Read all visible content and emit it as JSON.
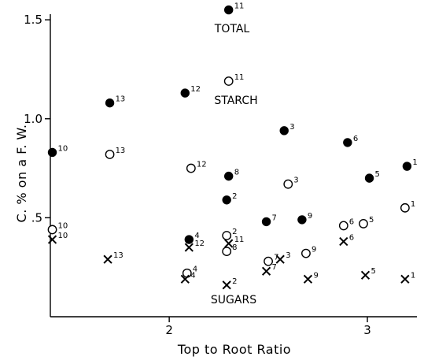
{
  "chart_data": {
    "type": "scatter",
    "title": "",
    "xlabel": "Top to Root Ratio",
    "ylabel": "C. % on a F. W.",
    "xlim": [
      1.4,
      3.25
    ],
    "ylim": [
      0.0,
      1.6
    ],
    "xticks": [
      2,
      3
    ],
    "xtick_labels": [
      "2",
      "3"
    ],
    "yticks": [
      0.5,
      1.0,
      1.5
    ],
    "ytick_labels": [
      ".5",
      "1.0",
      "1.5"
    ],
    "grid": false,
    "series": [
      {
        "name": "TOTAL",
        "marker": "filled-circle",
        "points": [
          {
            "x": 2.3,
            "y": 1.55,
            "label": "11"
          },
          {
            "x": 2.08,
            "y": 1.13,
            "label": "12"
          },
          {
            "x": 1.7,
            "y": 1.08,
            "label": "13"
          },
          {
            "x": 2.58,
            "y": 0.94,
            "label": "3"
          },
          {
            "x": 2.9,
            "y": 0.88,
            "label": "6"
          },
          {
            "x": 1.41,
            "y": 0.83,
            "label": "10"
          },
          {
            "x": 3.2,
            "y": 0.76,
            "label": "1"
          },
          {
            "x": 2.3,
            "y": 0.71,
            "label": "8"
          },
          {
            "x": 3.01,
            "y": 0.7,
            "label": "5"
          },
          {
            "x": 2.29,
            "y": 0.59,
            "label": "2"
          },
          {
            "x": 2.49,
            "y": 0.48,
            "label": "7"
          },
          {
            "x": 2.67,
            "y": 0.49,
            "label": "9"
          },
          {
            "x": 2.1,
            "y": 0.39,
            "label": "4"
          }
        ]
      },
      {
        "name": "STARCH",
        "marker": "open-circle",
        "points": [
          {
            "x": 2.3,
            "y": 1.19,
            "label": "11"
          },
          {
            "x": 1.7,
            "y": 0.82,
            "label": "13"
          },
          {
            "x": 2.11,
            "y": 0.75,
            "label": "12"
          },
          {
            "x": 2.6,
            "y": 0.67,
            "label": "3"
          },
          {
            "x": 3.19,
            "y": 0.55,
            "label": "1"
          },
          {
            "x": 2.88,
            "y": 0.46,
            "label": "6"
          },
          {
            "x": 2.98,
            "y": 0.47,
            "label": "5"
          },
          {
            "x": 1.41,
            "y": 0.44,
            "label": "10"
          },
          {
            "x": 2.29,
            "y": 0.41,
            "label": "2"
          },
          {
            "x": 2.29,
            "y": 0.33,
            "label": "8"
          },
          {
            "x": 2.69,
            "y": 0.32,
            "label": "9"
          },
          {
            "x": 2.5,
            "y": 0.28,
            "label": "7"
          },
          {
            "x": 2.09,
            "y": 0.22,
            "label": "4"
          }
        ]
      },
      {
        "name": "SUGARS",
        "marker": "cross",
        "points": [
          {
            "x": 1.41,
            "y": 0.39,
            "label": "10"
          },
          {
            "x": 2.1,
            "y": 0.35,
            "label": "12"
          },
          {
            "x": 2.3,
            "y": 0.37,
            "label": "11"
          },
          {
            "x": 2.88,
            "y": 0.38,
            "label": "6"
          },
          {
            "x": 1.69,
            "y": 0.29,
            "label": "13"
          },
          {
            "x": 2.56,
            "y": 0.29,
            "label": "3"
          },
          {
            "x": 2.49,
            "y": 0.23,
            "label": "7"
          },
          {
            "x": 2.08,
            "y": 0.19,
            "label": "4"
          },
          {
            "x": 2.7,
            "y": 0.19,
            "label": "9"
          },
          {
            "x": 2.99,
            "y": 0.21,
            "label": "5"
          },
          {
            "x": 3.19,
            "y": 0.19,
            "label": "1"
          },
          {
            "x": 2.29,
            "y": 0.16,
            "label": "2"
          }
        ]
      }
    ]
  }
}
